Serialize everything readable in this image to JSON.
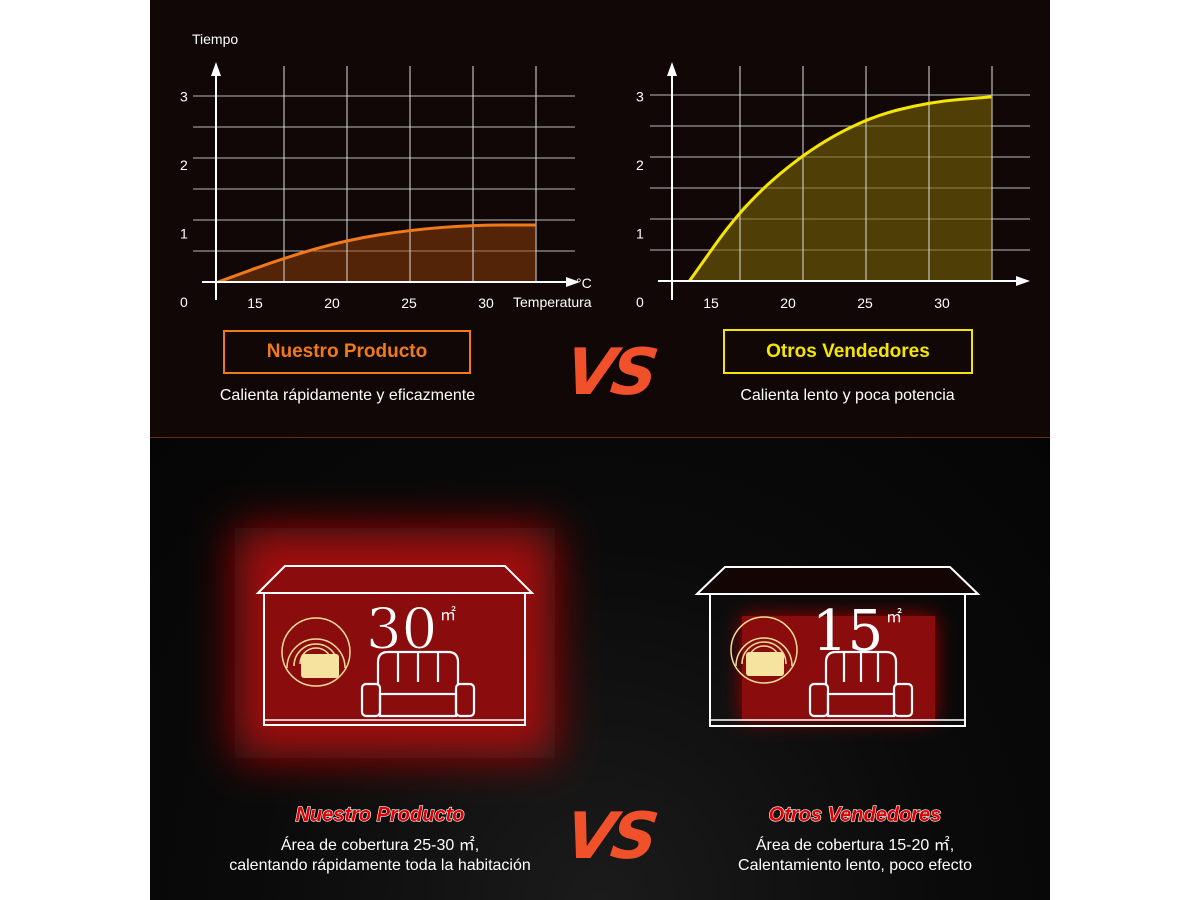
{
  "colors": {
    "ours": "#f07a1a",
    "others": "#f5e600",
    "accent": "#f0502a",
    "house_red": "#8a0c0c"
  },
  "top": {
    "left": {
      "badge": "Nuestro Producto",
      "caption": "Calienta rápidamente y eficazmente"
    },
    "right": {
      "badge": "Otros Vendedores",
      "caption": "Calienta lento y poca potencia"
    },
    "vs": "VS"
  },
  "chart_data": [
    {
      "type": "area",
      "ylabel": "Tiempo",
      "xlabel": "Temperatura",
      "xunit": "°C",
      "x_ticks": [
        "15",
        "20",
        "25",
        "30"
      ],
      "y_ticks": [
        "0",
        "1",
        "2",
        "3"
      ],
      "ylim": [
        0,
        3
      ],
      "grid": true,
      "color": "#f07a1a",
      "x": [
        12.6,
        16.9,
        21.0,
        25.1,
        29.2,
        33.2
      ],
      "values": [
        0,
        0.39,
        0.68,
        0.84,
        0.92,
        0.92
      ]
    },
    {
      "type": "area",
      "x_ticks": [
        "15",
        "20",
        "25",
        "30"
      ],
      "y_ticks": [
        "0",
        "1",
        "2",
        "3"
      ],
      "ylim": [
        0,
        3
      ],
      "grid": true,
      "color": "#f5e600",
      "x": [
        13.6,
        17.0,
        21.0,
        25.1,
        29.2,
        33.2
      ],
      "values": [
        0,
        1.19,
        2.06,
        2.63,
        2.89,
        2.97
      ]
    }
  ],
  "bottom": {
    "left": {
      "area": "30",
      "unit": "㎡",
      "title": "Nuestro Producto",
      "line1": "Área de cobertura 25-30 ㎡,",
      "line2": "calentando rápidamente toda la habitación",
      "icons": [
        "house-icon",
        "heater-icon",
        "sofa-icon"
      ]
    },
    "right": {
      "area": "15",
      "unit": "㎡",
      "title": "Otros Vendedores",
      "line1": "Área de cobertura 15-20 ㎡,",
      "line2": "Calentamiento lento, poco efecto",
      "icons": [
        "house-icon",
        "heater-icon",
        "sofa-icon"
      ]
    },
    "vs": "VS"
  }
}
